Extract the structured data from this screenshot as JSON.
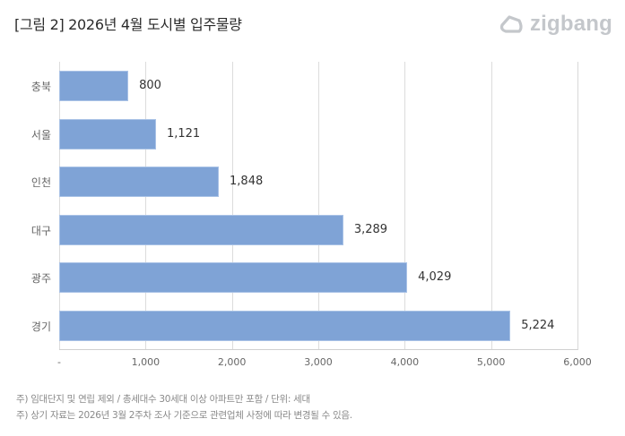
{
  "header": {
    "title": "[그림 2] 2026년 4월 도시별 입주물량",
    "logo_text": "zigbang",
    "logo_icon": "zigbang-house-icon"
  },
  "colors": {
    "bar": "#7fa3d6",
    "gridline": "#dcdcdc",
    "logo": "#c4c7cb"
  },
  "chart_data": {
    "type": "bar",
    "orientation": "horizontal",
    "title": "[그림 2] 2026년 4월 도시별 입주물량",
    "categories": [
      "충북",
      "서울",
      "인천",
      "대구",
      "광주",
      "경기"
    ],
    "values": [
      800,
      1121,
      1848,
      3289,
      4029,
      5224
    ],
    "value_labels": [
      "800",
      "1,121",
      "1,848",
      "3,289",
      "4,029",
      "5,224"
    ],
    "xlabel": "",
    "ylabel": "",
    "xlim": [
      0,
      6000
    ],
    "x_ticks": [
      0,
      1000,
      2000,
      3000,
      4000,
      5000,
      6000
    ],
    "x_tick_labels": [
      "-",
      "1,000",
      "2,000",
      "3,000",
      "4,000",
      "5,000",
      "6,000"
    ],
    "grid": true,
    "legend": null,
    "unit": "세대"
  },
  "notes": [
    "주) 임대단지 및 연립 제외 / 총세대수 30세대 이상 아파트만 포함 / 단위: 세대",
    "주) 상기 자료는 2026년 3월 2주차 조사 기준으로 관련업체 사정에 따라 변경될 수 있음."
  ]
}
